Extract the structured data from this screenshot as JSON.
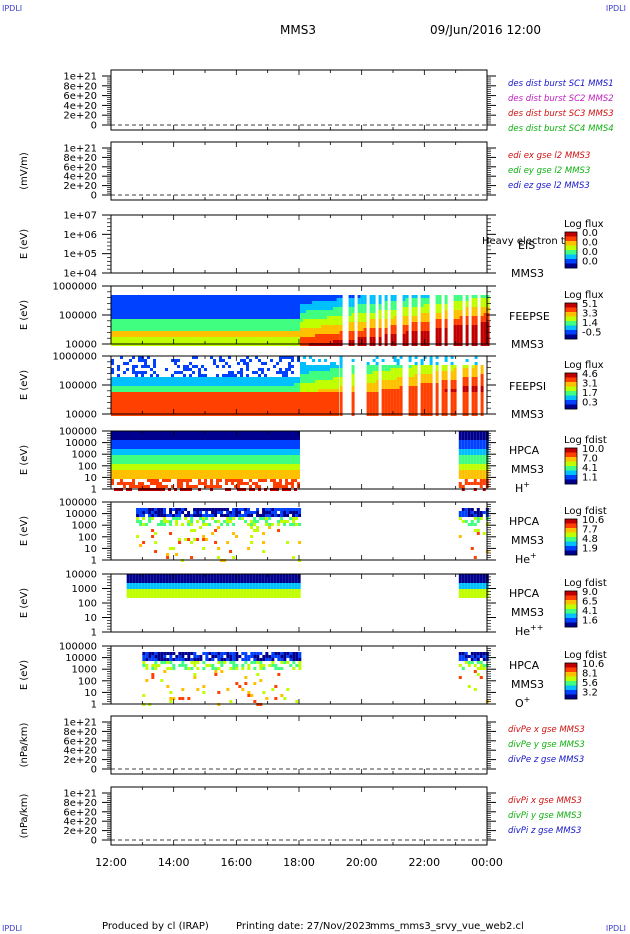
{
  "header": {
    "corner_tl": "IPDLI",
    "corner_tr": "IPDLI",
    "corner_bl": "IPDLI",
    "corner_br": "IPDLI",
    "spacecraft": "MMS3",
    "datetime": "09/Jun/2016 12:00"
  },
  "footer": {
    "produced_by": "Produced by cl (IRAP)",
    "printing_date": "Printing date: 27/Nov/2023",
    "filename": "mms_mms3_srvy_vue_web2.cl"
  },
  "colors": {
    "blue": "#1515c8",
    "magenta": "#c020c0",
    "red": "#d01010",
    "green": "#10b010",
    "colormap": [
      "#00008f",
      "#0040ff",
      "#00c0ff",
      "#40ff80",
      "#c0ff00",
      "#ffc000",
      "#ff4000",
      "#c00000"
    ]
  },
  "chart_data": [
    {
      "id": "p1",
      "type": "line",
      "yticks": [
        "1e+21",
        "8e+20",
        "6e+20",
        "4e+20",
        "2e+20",
        "0"
      ],
      "legend": [
        {
          "label": "des dist burst SC1 MMS1",
          "color": "#1515c8"
        },
        {
          "label": "des dist burst SC2 MMS2",
          "color": "#c020c0"
        },
        {
          "label": "des dist burst SC3 MMS3",
          "color": "#d01010"
        },
        {
          "label": "des dist burst SC4 MMS4",
          "color": "#10b010"
        }
      ]
    },
    {
      "id": "p2",
      "type": "line",
      "ylabel": "(mV/m)",
      "yticks": [
        "1e+21",
        "8e+20",
        "6e+20",
        "4e+20",
        "2e+20",
        "0"
      ],
      "legend": [
        {
          "label": "edi ex gse l2 MMS3",
          "color": "#d01010"
        },
        {
          "label": "edi ey gse l2 MMS3",
          "color": "#10b010"
        },
        {
          "label": "edi ez gse l2 MMS3",
          "color": "#1515c8"
        }
      ]
    },
    {
      "id": "p3",
      "type": "heatmap",
      "ylabel": "E (eV)",
      "yticks": [
        "1e+07",
        "1e+06",
        "1e+05",
        "1e+04"
      ],
      "instrument": "EIS",
      "spacecraft": "MMS3",
      "note": "Heavy electron to",
      "colorbar_title": "Log flux",
      "colorbar_ticks": [
        "0.0",
        "0.0",
        "0.0",
        "0.0"
      ],
      "coverage": []
    },
    {
      "id": "p4",
      "type": "heatmap",
      "ylabel": "E (eV)",
      "yticks": [
        "1000000",
        "100000",
        "10000"
      ],
      "instrument": "FEEPSE",
      "spacecraft": "MMS3",
      "colorbar_title": "Log flux",
      "colorbar_ticks": [
        "5.1",
        "3.3",
        "1.4",
        "-0.5"
      ],
      "coverage": [
        [
          12.0,
          19.2,
          "continuous"
        ],
        [
          19.2,
          24.0,
          "burst"
        ]
      ]
    },
    {
      "id": "p5",
      "type": "heatmap",
      "ylabel": "E (eV)",
      "yticks": [
        "1000000",
        "100000",
        "10000"
      ],
      "instrument": "FEEPSI",
      "spacecraft": "MMS3",
      "colorbar_title": "Log flux",
      "colorbar_ticks": [
        "4.6",
        "3.1",
        "1.7",
        "0.3"
      ],
      "coverage": [
        [
          12.0,
          19.2,
          "continuous"
        ],
        [
          19.2,
          24.0,
          "burst"
        ]
      ]
    },
    {
      "id": "p6",
      "type": "heatmap",
      "ylabel": "E (eV)",
      "yticks": [
        "100000",
        "10000",
        "1000",
        "100",
        "10",
        "1"
      ],
      "instrument": "HPCA",
      "spacecraft": "MMS3",
      "species": "H",
      "charge": "+",
      "colorbar_title": "Log fdist",
      "colorbar_ticks": [
        "10.0",
        "7.0",
        "4.1",
        "1.1"
      ],
      "coverage": [
        [
          12.0,
          18.0,
          "continuous"
        ],
        [
          23.1,
          24.0,
          "continuous"
        ]
      ]
    },
    {
      "id": "p7",
      "type": "heatmap",
      "ylabel": "E (eV)",
      "yticks": [
        "100000",
        "10000",
        "1000",
        "100",
        "10",
        "1"
      ],
      "instrument": "HPCA",
      "spacecraft": "MMS3",
      "species": "He",
      "charge": "+",
      "colorbar_title": "Log fdist",
      "colorbar_ticks": [
        "10.6",
        "7.7",
        "4.8",
        "1.9"
      ],
      "coverage": [
        [
          12.8,
          18.0,
          "sparse"
        ],
        [
          23.1,
          24.0,
          "sparse"
        ]
      ]
    },
    {
      "id": "p8",
      "type": "heatmap",
      "ylabel": "E (eV)",
      "yticks": [
        "10000",
        "1000",
        "100",
        "10",
        "1"
      ],
      "instrument": "HPCA",
      "spacecraft": "MMS3",
      "species": "He",
      "charge": "++",
      "colorbar_title": "Log fdist",
      "colorbar_ticks": [
        "9.0",
        "6.5",
        "4.1",
        "1.6"
      ],
      "coverage": [
        [
          12.5,
          18.0,
          "band"
        ],
        [
          23.1,
          24.0,
          "band"
        ]
      ]
    },
    {
      "id": "p9",
      "type": "heatmap",
      "ylabel": "E (eV)",
      "yticks": [
        "100000",
        "10000",
        "1000",
        "100",
        "10",
        "1"
      ],
      "instrument": "HPCA",
      "spacecraft": "MMS3",
      "species": "O",
      "charge": "+",
      "colorbar_title": "Log fdist",
      "colorbar_ticks": [
        "10.6",
        "8.1",
        "5.6",
        "3.2"
      ],
      "coverage": [
        [
          13.0,
          18.0,
          "sparse"
        ],
        [
          23.1,
          24.0,
          "sparse"
        ]
      ]
    },
    {
      "id": "p10",
      "type": "line",
      "ylabel": "(nPa/km)",
      "yticks": [
        "1e+21",
        "8e+20",
        "6e+20",
        "4e+20",
        "2e+20",
        "0"
      ],
      "legend": [
        {
          "label": "divPe x gse MMS3",
          "color": "#d01010"
        },
        {
          "label": "divPe y gse MMS3",
          "color": "#10b010"
        },
        {
          "label": "divPe z gse MMS3",
          "color": "#1515c8"
        }
      ]
    },
    {
      "id": "p11",
      "type": "line",
      "ylabel": "(nPa/km)",
      "yticks": [
        "1e+21",
        "8e+20",
        "6e+20",
        "4e+20",
        "2e+20",
        "0"
      ],
      "legend": [
        {
          "label": "divPi x gse MMS3",
          "color": "#d01010"
        },
        {
          "label": "divPi y gse MMS3",
          "color": "#10b010"
        },
        {
          "label": "divPi z gse MMS3",
          "color": "#1515c8"
        }
      ]
    }
  ],
  "time_axis": {
    "start_hour": 12,
    "end_hour": 24,
    "ticks": [
      "12:00",
      "14:00",
      "16:00",
      "18:00",
      "20:00",
      "22:00",
      "00:00"
    ]
  }
}
